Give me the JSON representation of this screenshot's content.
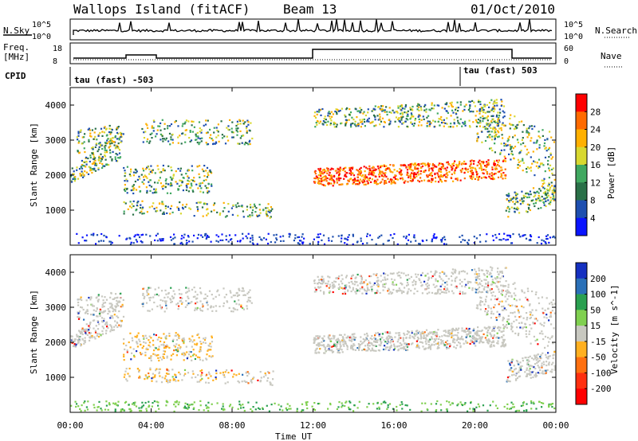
{
  "header": {
    "station": "Wallops Island (fitACF)",
    "beam": "Beam 13",
    "date": "01/Oct/2010"
  },
  "strips": {
    "nsky_label": "N.Sky",
    "nsearch_label": "N.Search",
    "freq_label_1": "Freq.",
    "freq_label_2": "[MHz]",
    "nave_label": "Nave",
    "cpid_label": "CPID",
    "left_ticks": [
      "10^5",
      "10^0",
      "18",
      "8"
    ],
    "right_ticks": [
      "10^5",
      "10^0",
      "60",
      "0"
    ],
    "cpid_segments": [
      {
        "label": "tau (fast) -503",
        "start_hr": 0
      },
      {
        "label": "tau (fast) 503",
        "start_hr": 19.4
      }
    ]
  },
  "chart_data": [
    {
      "type": "heatmap",
      "title": "",
      "xlabel": "",
      "ylabel": "Slant Range [km]",
      "xlim": [
        0,
        24
      ],
      "ylim": [
        0,
        4500
      ],
      "y_ticks": [
        1000,
        2000,
        3000,
        4000
      ],
      "colorbar": {
        "label": "Power [dB]",
        "ticks": [
          "28",
          "24",
          "20",
          "16",
          "12",
          "8",
          "4"
        ],
        "colors": [
          "#ff0000",
          "#ff6a00",
          "#ffb000",
          "#d8d830",
          "#40a860",
          "#2a7048",
          "#1e4fb0",
          "#0a14ff"
        ]
      }
    },
    {
      "type": "heatmap",
      "title": "",
      "xlabel": "Time UT",
      "ylabel": "Slant Range [km]",
      "xlim": [
        0,
        24
      ],
      "ylim": [
        0,
        4500
      ],
      "x_ticks": [
        "00:00",
        "04:00",
        "08:00",
        "12:00",
        "16:00",
        "20:00",
        "00:00"
      ],
      "y_ticks": [
        1000,
        2000,
        3000,
        4000
      ],
      "colorbar": {
        "label": "Velocity [m s^-1]",
        "ticks": [
          "200",
          "100",
          "50",
          "15",
          "-15",
          "-50",
          "-100",
          "-200"
        ],
        "colors": [
          "#1530c0",
          "#2a70b8",
          "#2aa050",
          "#80d050",
          "#c8c8c0",
          "#ffb020",
          "#ff7010",
          "#ff3010",
          "#ff0000"
        ]
      }
    }
  ]
}
